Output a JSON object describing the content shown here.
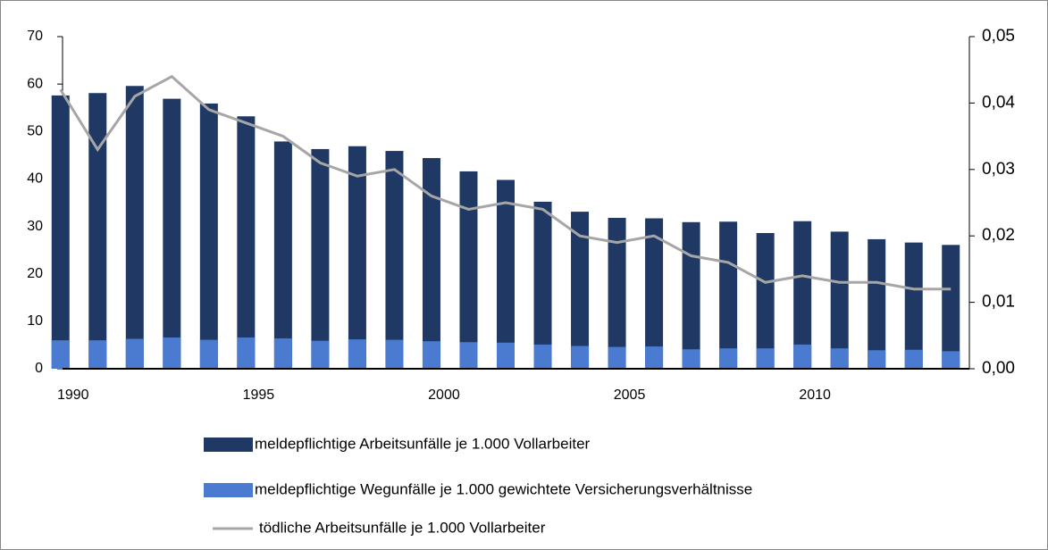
{
  "chart_data": {
    "type": "bar",
    "x": [
      1990,
      1991,
      1992,
      1993,
      1994,
      1995,
      1996,
      1997,
      1998,
      1999,
      2000,
      2001,
      2002,
      2003,
      2004,
      2005,
      2006,
      2007,
      2008,
      2009,
      2010,
      2011,
      2012,
      2013,
      2014
    ],
    "xlim": [
      1989.5,
      2014.5
    ],
    "xticks": [
      1990,
      1995,
      2000,
      2005,
      2010
    ],
    "ylim": [
      0,
      70
    ],
    "yticks": [
      0,
      10,
      20,
      30,
      40,
      50,
      60,
      70
    ],
    "y2lim": [
      0,
      0.05
    ],
    "y2ticks": [
      {
        "value": 0,
        "label": "0,00"
      },
      {
        "value": 0.01,
        "label": "0,01"
      },
      {
        "value": 0.02,
        "label": "0,02"
      },
      {
        "value": 0.03,
        "label": "0,03"
      },
      {
        "value": 0.04,
        "label": "0,04"
      },
      {
        "value": 0.05,
        "label": "0,05"
      }
    ],
    "series": [
      {
        "name": "meldepflichtige Arbeitsunfälle je 1.000 Vollarbeiter",
        "type": "bar",
        "color": "#1f3864",
        "values": [
          57.6,
          58.1,
          59.6,
          56.9,
          55.9,
          53.2,
          47.9,
          46.3,
          46.9,
          45.9,
          44.4,
          41.6,
          39.8,
          35.2,
          33.1,
          31.8,
          31.7,
          30.9,
          31.0,
          28.6,
          31.1,
          28.9,
          27.3,
          26.6,
          26.1
        ]
      },
      {
        "name": "meldepflichtige Wegunfälle je 1.000 gewichtete Versicherungsverhältnisse",
        "type": "bar",
        "color": "#4a7bd0",
        "values": [
          6.0,
          6.0,
          6.3,
          6.6,
          6.1,
          6.6,
          6.4,
          5.9,
          6.2,
          6.1,
          5.8,
          5.6,
          5.5,
          5.1,
          4.8,
          4.6,
          4.7,
          4.1,
          4.3,
          4.3,
          5.1,
          4.3,
          3.9,
          4.0,
          3.7
        ]
      },
      {
        "name": "tödliche Arbeitsunfälle je 1.000 Vollarbeiter",
        "type": "line",
        "axis": "y2",
        "color": "#a6a6a6",
        "values": [
          0.042,
          0.033,
          0.041,
          0.044,
          0.039,
          0.037,
          0.035,
          0.031,
          0.029,
          0.03,
          0.026,
          0.024,
          0.025,
          0.024,
          0.02,
          0.019,
          0.02,
          0.017,
          0.016,
          0.013,
          0.014,
          0.013,
          0.013,
          0.012,
          0.012
        ]
      }
    ]
  }
}
